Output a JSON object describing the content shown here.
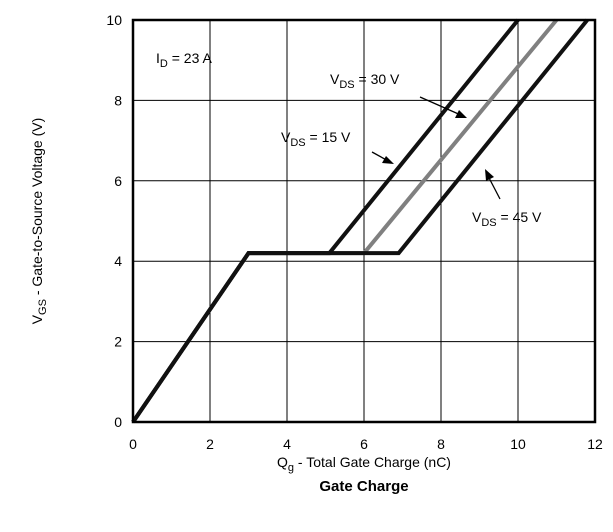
{
  "chart_data": {
    "type": "line",
    "title": "Gate Charge",
    "xlabel": {
      "main": "Q",
      "sub": "g",
      "rest": " - Total Gate Charge (nC)"
    },
    "ylabel": {
      "main": "V",
      "sub": "GS",
      "rest": " - Gate-to-Source Voltage (V)"
    },
    "xlim": [
      0,
      12
    ],
    "ylim": [
      0,
      10
    ],
    "xticks": [
      "0",
      "2",
      "4",
      "6",
      "8",
      "10",
      "12"
    ],
    "yticks": [
      "0",
      "2",
      "4",
      "6",
      "8",
      "10"
    ],
    "grid": true,
    "series": [
      {
        "name": {
          "main": "V",
          "sub": "DS",
          "rest": " = 15 V"
        },
        "color": "#111111",
        "x": [
          0,
          3,
          5.1,
          10
        ],
        "y": [
          0,
          4.2,
          4.2,
          10
        ]
      },
      {
        "name": {
          "main": "V",
          "sub": "DS",
          "rest": " = 30 V"
        },
        "color": "#808080",
        "x": [
          0,
          3,
          6,
          11
        ],
        "y": [
          0,
          4.2,
          4.2,
          10
        ]
      },
      {
        "name": {
          "main": "V",
          "sub": "DS",
          "rest": " = 45 V"
        },
        "color": "#111111",
        "x": [
          0,
          3,
          6.9,
          11.8
        ],
        "y": [
          0,
          4.2,
          4.2,
          10
        ]
      }
    ],
    "annotations": [
      {
        "main": "I",
        "sub": "D",
        "rest": " = 23 A"
      }
    ]
  }
}
